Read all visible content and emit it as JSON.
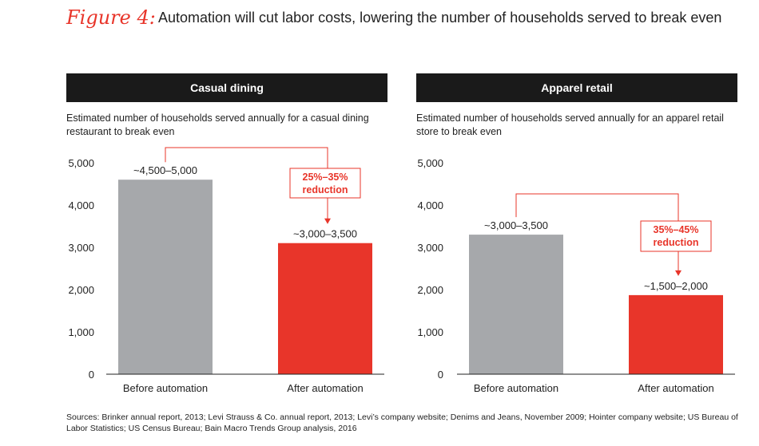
{
  "figure": {
    "label": "Figure 4:",
    "title": "Automation will cut labor costs, lowering the number of households served to break even"
  },
  "colors": {
    "before": "#a6a8ab",
    "after": "#e8352a",
    "accent": "#e8352a",
    "header_bg": "#1a1a1a"
  },
  "chart_data": [
    {
      "type": "bar",
      "title": "Casual dining",
      "ylabel": "Estimated number of households served annually for a casual dining restaurant to break even",
      "categories": [
        "Before automation",
        "After automation"
      ],
      "values": [
        4600,
        3100
      ],
      "data_labels": [
        "~4,500–5,000",
        "~3,000–3,500"
      ],
      "yticks": [
        0,
        1000,
        2000,
        3000,
        4000,
        5000
      ],
      "ytick_labels": [
        "0",
        "1,000",
        "2,000",
        "3,000",
        "4,000",
        "5,000"
      ],
      "ylim": [
        0,
        5000
      ],
      "annotation": {
        "line1": "25%–35%",
        "line2": "reduction"
      }
    },
    {
      "type": "bar",
      "title": "Apparel retail",
      "ylabel": "Estimated number of households served annually for an apparel retail store to break even",
      "categories": [
        "Before automation",
        "After automation"
      ],
      "values": [
        3300,
        1870
      ],
      "data_labels": [
        "~3,000–3,500",
        "~1,500–2,000"
      ],
      "yticks": [
        0,
        1000,
        2000,
        3000,
        4000,
        5000
      ],
      "ytick_labels": [
        "0",
        "1,000",
        "2,000",
        "3,000",
        "4,000",
        "5,000"
      ],
      "ylim": [
        0,
        5000
      ],
      "annotation": {
        "line1": "35%–45%",
        "line2": "reduction"
      }
    }
  ],
  "sources": "Sources: Brinker annual report, 2013; Levi Strauss & Co. annual report, 2013; Levi’s company website; Denims and Jeans, November 2009; Hointer company website; US Bureau of Labor Statistics; US Census Bureau; Bain Macro Trends Group analysis, 2016"
}
